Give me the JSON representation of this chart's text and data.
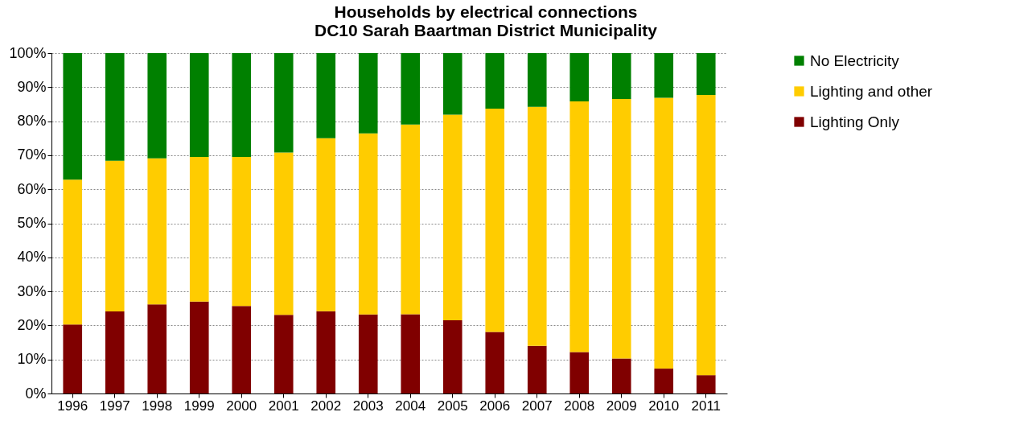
{
  "chart_data": {
    "type": "bar",
    "stacked": true,
    "title": "Households by electrical connections\nDC10 Sarah Baartman District Municipality",
    "categories": [
      "1996",
      "1997",
      "1998",
      "1999",
      "2000",
      "2001",
      "2002",
      "2003",
      "2004",
      "2005",
      "2006",
      "2007",
      "2008",
      "2009",
      "2010",
      "2011"
    ],
    "series": [
      {
        "name": "Lighting Only",
        "color": "#800000",
        "values": [
          20.3,
          24.1,
          26.2,
          27.0,
          25.7,
          23.1,
          24.2,
          23.2,
          23.3,
          21.5,
          18.1,
          14.0,
          12.2,
          10.3,
          7.3,
          5.4
        ]
      },
      {
        "name": "Lighting and other",
        "color": "#ffcc00",
        "values": [
          42.5,
          44.3,
          42.9,
          42.5,
          43.8,
          47.7,
          50.8,
          53.2,
          55.7,
          60.4,
          65.6,
          70.2,
          73.6,
          76.2,
          79.6,
          82.3
        ]
      },
      {
        "name": "No Electricity",
        "color": "#008000",
        "values": [
          37.2,
          31.6,
          30.9,
          30.5,
          30.5,
          29.2,
          25.0,
          23.6,
          21.0,
          18.1,
          16.3,
          15.8,
          14.2,
          13.5,
          13.1,
          12.3
        ]
      }
    ],
    "ylim": [
      0,
      100
    ],
    "yticks": [
      {
        "value": 0,
        "label": "0%"
      },
      {
        "value": 10,
        "label": "10%"
      },
      {
        "value": 20,
        "label": "20%"
      },
      {
        "value": 30,
        "label": "30%"
      },
      {
        "value": 40,
        "label": "40%"
      },
      {
        "value": 50,
        "label": "50%"
      },
      {
        "value": 60,
        "label": "60%"
      },
      {
        "value": 70,
        "label": "70%"
      },
      {
        "value": 80,
        "label": "80%"
      },
      {
        "value": 90,
        "label": "90%"
      },
      {
        "value": 100,
        "label": "100%"
      }
    ],
    "grid": "y",
    "legend": "right"
  }
}
